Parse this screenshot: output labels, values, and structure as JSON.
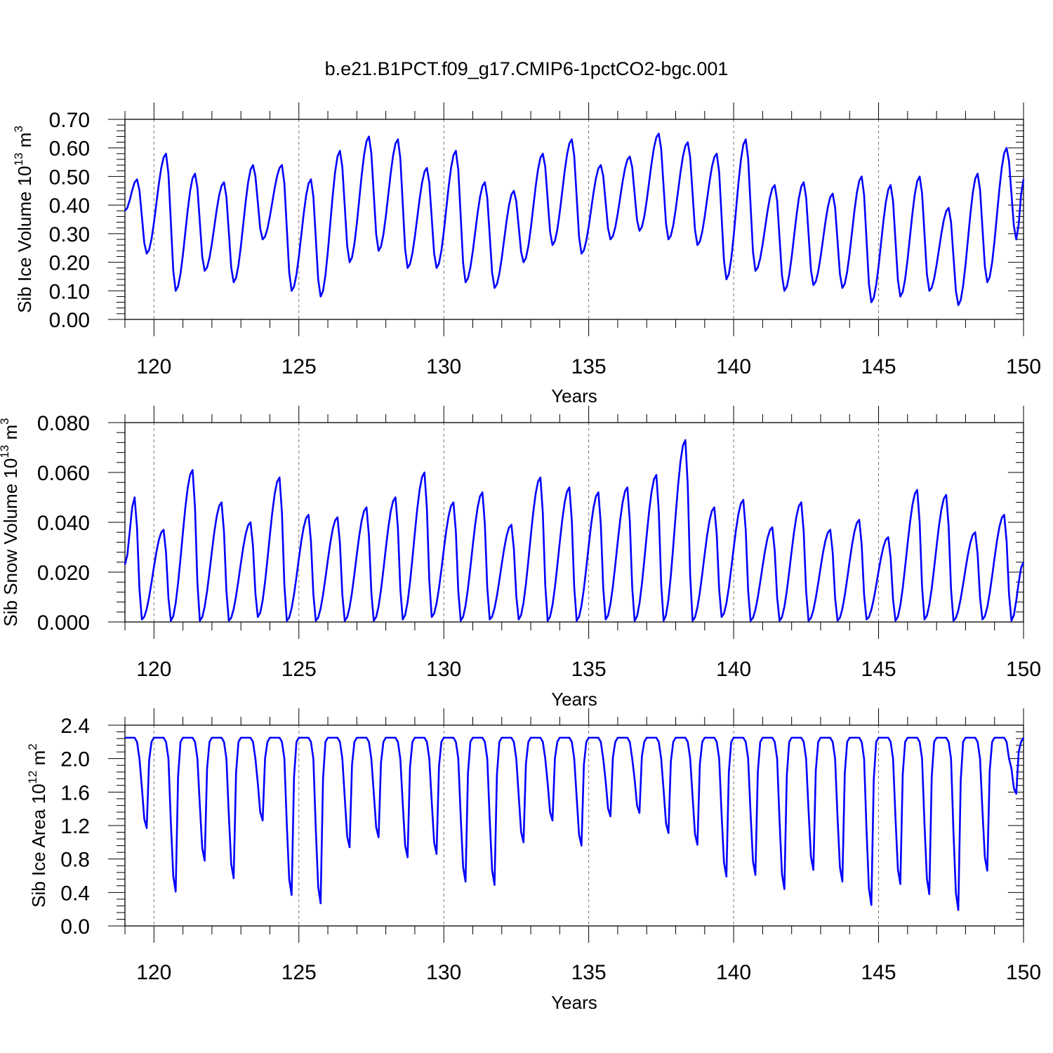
{
  "title": "b.e21.B1PCT.f09_g17.CMIP6-1pctCO2-bgc.001",
  "chart_data": [
    {
      "type": "line",
      "title": "",
      "xlabel": "Years",
      "ylabel": {
        "main": "Sib Ice Volume 10",
        "exponent": "13",
        "unit": " m",
        "unit_exponent": "3"
      },
      "xlim": [
        119.0,
        150.0
      ],
      "ylim": [
        0.0,
        0.7
      ],
      "xticks": [
        120,
        125,
        130,
        135,
        140,
        145,
        150
      ],
      "yticks": [
        0.0,
        0.1,
        0.2,
        0.3,
        0.4,
        0.5,
        0.6,
        0.7
      ],
      "ytick_decimals": 2,
      "grid": "vertical dashed at major ticks",
      "color": "#0000ff",
      "series_monthly": {
        "start_x": 119.0,
        "step": 0.08333,
        "peaks": [
          0.49,
          0.58,
          0.51,
          0.48,
          0.54,
          0.54,
          0.49,
          0.59,
          0.64,
          0.63,
          0.53,
          0.59,
          0.48,
          0.45,
          0.58,
          0.63,
          0.54,
          0.57,
          0.65,
          0.62,
          0.58,
          0.63,
          0.47,
          0.48,
          0.44,
          0.5,
          0.47,
          0.5,
          0.39,
          0.51,
          0.6
        ],
        "troughs": [
          0.23,
          0.1,
          0.17,
          0.13,
          0.28,
          0.1,
          0.08,
          0.2,
          0.24,
          0.18,
          0.18,
          0.13,
          0.11,
          0.2,
          0.26,
          0.23,
          0.28,
          0.31,
          0.28,
          0.26,
          0.14,
          0.17,
          0.1,
          0.12,
          0.11,
          0.06,
          0.08,
          0.1,
          0.05,
          0.13,
          0.28
        ],
        "peak_month": 5,
        "trough_month": 9,
        "first_value": 0.38,
        "last_value": 0.49
      }
    },
    {
      "type": "line",
      "title": "",
      "xlabel": "Years",
      "ylabel": {
        "main": "Sib Snow Volume 10",
        "exponent": "13",
        "unit": " m",
        "unit_exponent": "3"
      },
      "xlim": [
        119.0,
        150.0
      ],
      "ylim": [
        0.0,
        0.08
      ],
      "xticks": [
        120,
        125,
        130,
        135,
        140,
        145,
        150
      ],
      "yticks": [
        0.0,
        0.02,
        0.04,
        0.06,
        0.08
      ],
      "ytick_decimals": 3,
      "grid": "vertical dashed at major ticks",
      "color": "#0000ff",
      "series_monthly": {
        "start_x": 119.0,
        "step": 0.08333,
        "peaks": [
          0.05,
          0.037,
          0.061,
          0.048,
          0.04,
          0.058,
          0.043,
          0.042,
          0.046,
          0.05,
          0.06,
          0.048,
          0.052,
          0.039,
          0.058,
          0.054,
          0.052,
          0.054,
          0.059,
          0.073,
          0.046,
          0.049,
          0.038,
          0.048,
          0.037,
          0.041,
          0.034,
          0.053,
          0.051,
          0.036,
          0.043
        ],
        "troughs": [
          0.001,
          0.0005,
          0.0005,
          0.0005,
          0.002,
          0.0005,
          0.0005,
          0.0005,
          0.0005,
          0.001,
          0.002,
          0.0005,
          0.001,
          0.001,
          0.0005,
          0.0005,
          0.001,
          0.0005,
          0.0005,
          0.0005,
          0.002,
          0.0005,
          0.0005,
          0.0005,
          0.0005,
          0.001,
          0.0005,
          0.001,
          0.0005,
          0.001,
          0.0005
        ],
        "peak_month": 4,
        "trough_month": 7,
        "first_value": 0.023,
        "last_value": 0.024
      }
    },
    {
      "type": "line",
      "title": "",
      "xlabel": "Years",
      "ylabel": {
        "main": "Sib Ice Area 10",
        "exponent": "12",
        "unit": " m",
        "unit_exponent": "2"
      },
      "xlim": [
        119.0,
        150.0
      ],
      "ylim": [
        0.0,
        2.4
      ],
      "xticks": [
        120,
        125,
        130,
        135,
        140,
        145,
        150
      ],
      "yticks": [
        0.0,
        0.4,
        0.8,
        1.2,
        1.6,
        2.0,
        2.4
      ],
      "ytick_decimals": 1,
      "grid": "vertical dashed at major ticks",
      "color": "#0000ff",
      "series_monthly": {
        "start_x": 119.0,
        "step": 0.08333,
        "plateau": 2.25,
        "troughs": [
          1.17,
          0.41,
          0.78,
          0.57,
          1.26,
          0.37,
          0.27,
          0.94,
          1.06,
          0.82,
          0.86,
          0.53,
          0.49,
          1.0,
          1.26,
          0.96,
          1.31,
          1.35,
          1.11,
          0.97,
          0.59,
          0.61,
          0.44,
          0.67,
          0.53,
          0.25,
          0.5,
          0.38,
          0.19,
          0.66,
          1.58
        ],
        "trough_month": 9,
        "first_value": 2.25,
        "last_value": 2.25
      }
    }
  ]
}
